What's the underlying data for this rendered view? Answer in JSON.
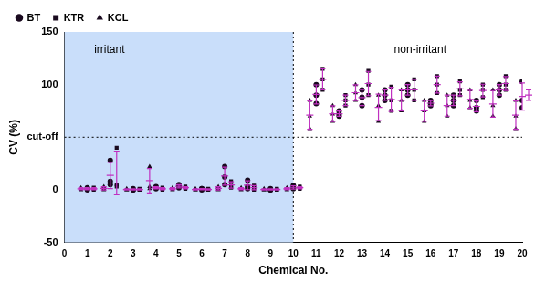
{
  "chart_data": {
    "type": "scatter",
    "x_label": "Chemical No.",
    "y_label": "CV (%)",
    "x": [
      1,
      2,
      3,
      4,
      5,
      6,
      7,
      8,
      9,
      10,
      11,
      12,
      13,
      14,
      15,
      16,
      17,
      18,
      19,
      20
    ],
    "series": [
      {
        "name": "BT",
        "color": "#1a0a1f",
        "marker": "circle",
        "values": [
          [
            0,
            2,
            1
          ],
          [
            28,
            8,
            5
          ],
          [
            0,
            1,
            0
          ],
          [
            1,
            3,
            2
          ],
          [
            5,
            3,
            2
          ],
          [
            1,
            0,
            1
          ],
          [
            22,
            12,
            5
          ],
          [
            9,
            3,
            1
          ],
          [
            0,
            1,
            0
          ],
          [
            4,
            2,
            1
          ],
          [
            100,
            90,
            82
          ],
          [
            75,
            72,
            70
          ],
          [
            95,
            88,
            80
          ],
          [
            95,
            90,
            85
          ],
          [
            100,
            95,
            90
          ],
          [
            85,
            82,
            80
          ],
          [
            90,
            85,
            80
          ],
          [
            85,
            78,
            75
          ],
          [
            100,
            95,
            90
          ],
          [
            103,
            85,
            78
          ]
        ],
        "mean": [
          1,
          13.67,
          0.33,
          2,
          3.33,
          0.67,
          13,
          4.33,
          0.33,
          2.33,
          90.67,
          72.33,
          87.67,
          90,
          95,
          82.33,
          85,
          79.33,
          95,
          88.67
        ],
        "sd": [
          1,
          12.5,
          0.58,
          1,
          1.53,
          0.58,
          8.54,
          4.16,
          0.58,
          1.53,
          9.02,
          2.52,
          7.51,
          5,
          5,
          2.52,
          5,
          5.13,
          5,
          12.9
        ]
      },
      {
        "name": "KTR",
        "color": "#1a0a1f",
        "marker": "square",
        "values": [
          [
            1,
            2,
            0
          ],
          [
            40,
            5,
            3
          ],
          [
            0,
            0,
            1
          ],
          [
            2,
            1,
            0
          ],
          [
            3,
            2,
            1
          ],
          [
            0,
            1,
            0
          ],
          [
            8,
            4,
            2
          ],
          [
            4,
            2,
            0
          ],
          [
            0,
            0,
            1
          ],
          [
            3,
            2,
            1
          ],
          [
            115,
            105,
            95
          ],
          [
            90,
            85,
            80
          ],
          [
            113,
            100,
            90
          ],
          [
            98,
            85,
            75
          ],
          [
            105,
            95,
            85
          ],
          [
            108,
            100,
            92
          ],
          [
            103,
            95,
            90
          ],
          [
            100,
            95,
            88
          ],
          [
            108,
            100,
            95
          ],
          [
            95,
            90,
            85
          ]
        ],
        "mean": [
          1,
          16,
          0.33,
          1,
          2,
          0.33,
          4.67,
          2,
          0.33,
          2,
          105,
          85,
          101,
          86,
          95,
          100,
          96,
          94.33,
          101,
          90
        ],
        "sd": [
          1,
          20.8,
          0.58,
          1,
          1,
          0.58,
          3.06,
          2,
          0.58,
          1,
          10,
          5,
          11.5,
          11.5,
          10,
          8,
          6.56,
          6.03,
          6.56,
          5
        ]
      },
      {
        "name": "KCL",
        "color": "#1a0a1f",
        "marker": "triangle",
        "values": [
          [
            0,
            1,
            2
          ],
          [
            3,
            1,
            0
          ],
          [
            0,
            1,
            0
          ],
          [
            22,
            3,
            1
          ],
          [
            2,
            1,
            0
          ],
          [
            0,
            1,
            0
          ],
          [
            3,
            1,
            0
          ],
          [
            2,
            0,
            1
          ],
          [
            0,
            1,
            0
          ],
          [
            2,
            1,
            0
          ],
          [
            85,
            70,
            58
          ],
          [
            80,
            72,
            65
          ],
          [
            100,
            92,
            85
          ],
          [
            90,
            80,
            65
          ],
          [
            95,
            85,
            75
          ],
          [
            85,
            75,
            65
          ],
          [
            90,
            80,
            70
          ],
          [
            95,
            85,
            78
          ],
          [
            95,
            80,
            70
          ],
          [
            85,
            70,
            58
          ]
        ],
        "mean": [
          1,
          1.33,
          0.33,
          8.67,
          1,
          0.33,
          1.33,
          1,
          0.33,
          1,
          71,
          72.33,
          92.33,
          78.33,
          85,
          75,
          80,
          86,
          81.67,
          71
        ],
        "sd": [
          1,
          1.53,
          0.58,
          11.6,
          1,
          0.58,
          1.53,
          1,
          0.58,
          1,
          13.5,
          7.51,
          7.51,
          12.6,
          10,
          10,
          10,
          8.54,
          12.6,
          13.5
        ]
      }
    ],
    "xlim": [
      0,
      20
    ],
    "xticks": [
      0,
      1,
      2,
      3,
      4,
      5,
      6,
      7,
      8,
      9,
      10,
      11,
      12,
      13,
      14,
      15,
      16,
      17,
      18,
      19,
      20
    ],
    "ylim": [
      -50,
      150
    ],
    "yticks": [
      -50,
      0,
      {
        "value": 50,
        "label": "cut-off"
      },
      100,
      150
    ],
    "grid": false,
    "legend": "top-left",
    "annotations": [
      {
        "text": "irritant",
        "x_from": 0,
        "x_to": 10
      },
      {
        "text": "non-irritant",
        "x_from": 10,
        "x_to": 20
      }
    ],
    "reference_lines": [
      {
        "axis": "x",
        "value": 10
      },
      {
        "axis": "y",
        "value": 50
      }
    ]
  }
}
